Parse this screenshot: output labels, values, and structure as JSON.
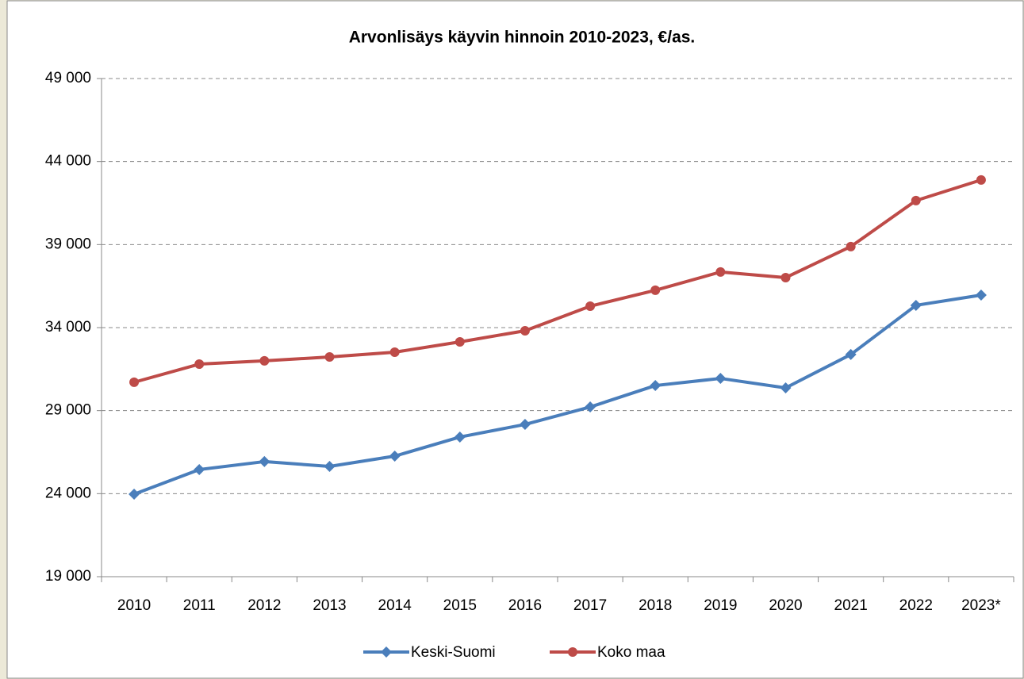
{
  "chart_data": {
    "type": "line",
    "title": "Arvonlisäys käyvin hinnoin 2010-2023, €/as.",
    "categories": [
      "2010",
      "2011",
      "2012",
      "2013",
      "2014",
      "2015",
      "2016",
      "2017",
      "2018",
      "2019",
      "2020",
      "2021",
      "2022",
      "2023*"
    ],
    "series": [
      {
        "name": "Keski-Suomi",
        "color": "#4a7ebb",
        "marker": "diamond",
        "values": [
          23970,
          25450,
          25930,
          25640,
          26260,
          27410,
          28170,
          29220,
          30510,
          30940,
          30370,
          32380,
          35340,
          35960
        ]
      },
      {
        "name": "Koko maa",
        "color": "#be4b48",
        "marker": "circle",
        "values": [
          30710,
          31800,
          32000,
          32230,
          32520,
          33140,
          33810,
          35290,
          36250,
          37350,
          37010,
          38880,
          41650,
          42890
        ]
      }
    ],
    "ylim": [
      19000,
      49000
    ],
    "yticks": [
      {
        "value": 19000,
        "label": "19 000"
      },
      {
        "value": 24000,
        "label": "24 000"
      },
      {
        "value": 29000,
        "label": "29 000"
      },
      {
        "value": 34000,
        "label": "34 000"
      },
      {
        "value": 39000,
        "label": "39 000"
      },
      {
        "value": 44000,
        "label": "44 000"
      },
      {
        "value": 49000,
        "label": "49 000"
      }
    ],
    "grid": true,
    "legend": "bottom"
  }
}
